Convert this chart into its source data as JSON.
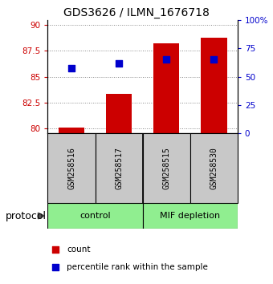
{
  "title": "GDS3626 / ILMN_1676718",
  "samples": [
    "GSM258516",
    "GSM258517",
    "GSM258515",
    "GSM258530"
  ],
  "groups": [
    "control",
    "control",
    "MIF depletion",
    "MIF depletion"
  ],
  "bar_color": "#CC0000",
  "dot_color": "#0000CC",
  "count_values": [
    80.1,
    83.3,
    88.2,
    88.8
  ],
  "percentile_values": [
    85.8,
    86.3,
    86.7,
    86.7
  ],
  "ylim_left": [
    79.5,
    90.5
  ],
  "ylim_right": [
    0,
    100
  ],
  "yticks_left": [
    80,
    82.5,
    85,
    87.5,
    90
  ],
  "yticks_right": [
    0,
    25,
    50,
    75,
    100
  ],
  "ytick_labels_left": [
    "80",
    "82.5",
    "85",
    "87.5",
    "90"
  ],
  "ytick_labels_right": [
    "0",
    "25",
    "50",
    "75",
    "100%"
  ],
  "left_tick_color": "#CC0000",
  "right_tick_color": "#0000CC",
  "grid_color": "#888888",
  "sample_box_color": "#C8C8C8",
  "group_box_color": "#90EE90",
  "bar_bottom": 79.5,
  "bar_width": 0.55,
  "dot_size": 35,
  "title_fontsize": 10,
  "tick_fontsize": 7.5,
  "sample_fontsize": 7,
  "group_fontsize": 8,
  "legend_fontsize": 7.5,
  "protocol_fontsize": 9
}
